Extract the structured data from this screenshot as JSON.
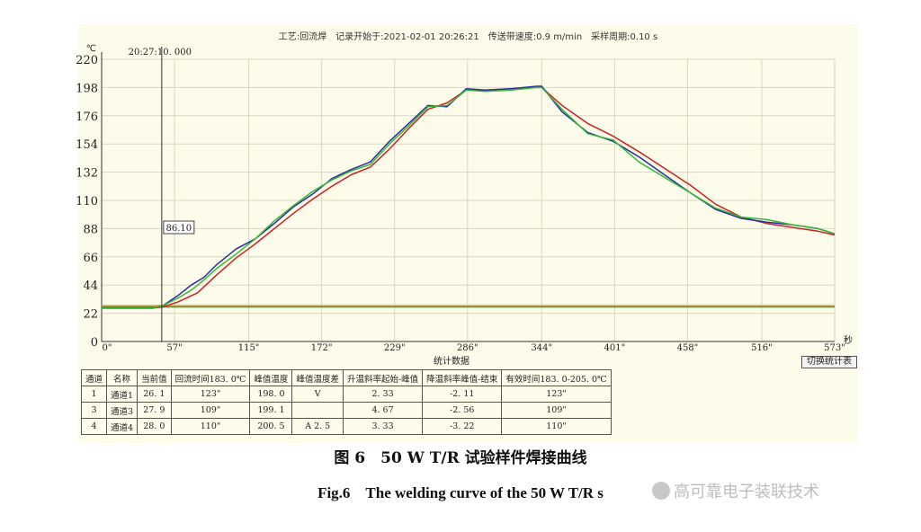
{
  "chart_data": {
    "type": "line",
    "header_text": "工艺:回流焊　记录开始于:2021-02-01 20:26:21　传送带速度:0.9 m/min　采样周期:0.10 s",
    "y_unit": "℃",
    "x_unit": "秒",
    "ylim": [
      0,
      220
    ],
    "xlim": [
      0,
      573
    ],
    "y_ticks": [
      0,
      22,
      44,
      66,
      88,
      110,
      132,
      154,
      176,
      198,
      220
    ],
    "x_ticks": [
      0,
      57,
      115,
      172,
      229,
      286,
      344,
      401,
      458,
      516,
      573
    ],
    "x_tick_labels": [
      "0\"",
      "57\"",
      "115\"",
      "172\"",
      "229\"",
      "286\"",
      "344\"",
      "401\"",
      "458\"",
      "516\"",
      "573\""
    ],
    "cursor": {
      "x": 47,
      "time_label": "20:27:10. 000",
      "value_label": "86.10"
    },
    "reference_lines": [
      {
        "y": 27,
        "color": "#2e9a2e"
      },
      {
        "y": 28,
        "color": "#d6a63b"
      }
    ],
    "grid": true,
    "series": [
      {
        "color": "#cc2222",
        "x": [
          0,
          40,
          48,
          60,
          75,
          90,
          105,
          120,
          135,
          150,
          165,
          180,
          195,
          210,
          225,
          240,
          255,
          270,
          285,
          300,
          320,
          340,
          344,
          360,
          380,
          400,
          420,
          440,
          460,
          480,
          500,
          520,
          540,
          560,
          573
        ],
        "y": [
          26,
          26,
          27,
          31,
          38,
          52,
          65,
          76,
          88,
          100,
          111,
          121,
          130,
          136,
          150,
          166,
          181,
          186,
          196,
          196,
          197,
          198,
          198,
          184,
          170,
          160,
          148,
          135,
          122,
          107,
          97,
          92,
          89,
          86,
          83
        ]
      },
      {
        "color": "#2a2aa8",
        "x": [
          0,
          40,
          48,
          60,
          70,
          80,
          90,
          105,
          120,
          135,
          150,
          165,
          180,
          195,
          210,
          225,
          240,
          255,
          270,
          285,
          300,
          320,
          340,
          344,
          360,
          380,
          400,
          420,
          440,
          460,
          480,
          500,
          520,
          540,
          560,
          573
        ],
        "y": [
          26,
          26,
          28,
          36,
          44,
          50,
          60,
          72,
          80,
          92,
          105,
          115,
          127,
          134,
          140,
          156,
          170,
          184,
          183,
          197,
          196,
          197,
          199,
          199,
          179,
          163,
          156,
          144,
          130,
          116,
          103,
          96,
          93,
          91,
          88,
          84
        ]
      },
      {
        "color": "#33bb33",
        "x": [
          0,
          40,
          48,
          60,
          70,
          80,
          90,
          105,
          120,
          135,
          150,
          165,
          180,
          195,
          210,
          225,
          240,
          255,
          270,
          285,
          300,
          320,
          340,
          344,
          360,
          380,
          400,
          420,
          440,
          460,
          480,
          500,
          520,
          540,
          560,
          573
        ],
        "y": [
          26,
          26,
          28,
          34,
          40,
          48,
          57,
          68,
          80,
          94,
          106,
          117,
          126,
          133,
          138,
          154,
          168,
          183,
          184,
          196,
          195,
          196,
          198,
          198,
          181,
          162,
          157,
          140,
          128,
          116,
          104,
          97,
          95,
          91,
          88,
          84
        ]
      }
    ]
  },
  "stats": {
    "title": "统计数据",
    "switch_label": "切换统计表",
    "headers": [
      "通道",
      "名称",
      "当前值",
      "回流时间183. 0℃",
      "峰值温度",
      "峰值温度差",
      "升温斜率起始-峰值",
      "降温斜率峰值-结束",
      "有效时间183. 0-205. 0℃"
    ],
    "rows": [
      [
        "1",
        "通道1",
        "26. 1",
        "123\"",
        "198. 0",
        "V",
        "2. 33",
        "-2. 11",
        "123\""
      ],
      [
        "3",
        "通道3",
        "27. 9",
        "109\"",
        "199. 1",
        "",
        "4. 67",
        "-2. 56",
        "109\""
      ],
      [
        "4",
        "通道4",
        "28. 0",
        "110\"",
        "200. 5",
        "A  2. 5",
        "3. 33",
        "-3. 22",
        "110\""
      ]
    ]
  },
  "caption_cn": "图 6　50 W T/R 试验样件焊接曲线",
  "caption_en": "Fig.6　The welding curve of the 50 W T/R s",
  "watermark": "高可靠电子装联技术"
}
